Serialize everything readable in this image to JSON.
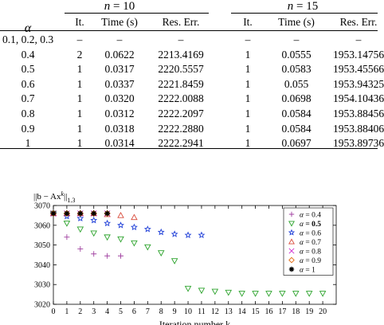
{
  "table": {
    "alpha_symbol": "α",
    "groups": [
      {
        "var": "n",
        "rest": " = 10"
      },
      {
        "var": "n",
        "rest": " = 15"
      }
    ],
    "subheaders": [
      "It.",
      "Time (s)",
      "Res. Err.",
      "It.",
      "Time (s)",
      "Res. Err."
    ],
    "rows": [
      {
        "alpha": "0.1, 0.2, 0.3",
        "cells": [
          "–",
          "–",
          "–",
          "–",
          "–",
          "–"
        ]
      },
      {
        "alpha": "0.4",
        "cells": [
          "2",
          "0.0622",
          "2213.4169",
          "1",
          "0.0555",
          "1953.14756"
        ]
      },
      {
        "alpha": "0.5",
        "cells": [
          "1",
          "0.0317",
          "2220.5557",
          "1",
          "0.0583",
          "1953.45566"
        ]
      },
      {
        "alpha": "0.6",
        "cells": [
          "1",
          "0.0337",
          "2221.8459",
          "1",
          "0.055",
          "1953.94325"
        ]
      },
      {
        "alpha": "0.7",
        "cells": [
          "1",
          "0.0320",
          "2222.0088",
          "1",
          "0.0698",
          "1954.10436"
        ]
      },
      {
        "alpha": "0.8",
        "cells": [
          "1",
          "0.0312",
          "2222.2097",
          "1",
          "0.0584",
          "1953.88456"
        ]
      },
      {
        "alpha": "0.9",
        "cells": [
          "1",
          "0.0318",
          "2222.2880",
          "1",
          "0.0584",
          "1953.88406"
        ]
      },
      {
        "alpha": "1",
        "cells": [
          "1",
          "0.0314",
          "2222.2941",
          "1",
          "0.0697",
          "1953.89736"
        ]
      }
    ]
  },
  "chart_data": {
    "type": "scatter",
    "ylabel": "||b − Ax^k||_1.3",
    "xlabel": "Iteration number k",
    "xlim": [
      0,
      21
    ],
    "ylim": [
      3020,
      3070
    ],
    "x_ticks": [
      "0",
      "1",
      "2",
      "3",
      "4",
      "5",
      "6",
      "7",
      "8",
      "9",
      "10",
      "11",
      "12",
      "13",
      "14",
      "15",
      "16",
      "17",
      "18",
      "19",
      "20"
    ],
    "y_ticks": [
      "3020",
      "3030",
      "3040",
      "3050",
      "3060",
      "3070"
    ],
    "legend_position": "top-right",
    "series": [
      {
        "name": "α = 0.4",
        "label": "α = 0.4",
        "marker": "plus",
        "color": "#a040a0",
        "x": [
          0,
          1,
          2,
          3,
          4,
          5
        ],
        "y": [
          3066,
          3054,
          3048,
          3045.5,
          3044.5,
          3044.5
        ]
      },
      {
        "name": "α = 0.5",
        "label": "α = 0.5",
        "marker": "triangle-down",
        "color": "#2aa22a",
        "x": [
          0,
          1,
          2,
          3,
          4,
          5,
          6,
          7,
          8,
          9,
          10,
          11,
          12,
          13,
          14,
          15,
          16,
          17,
          18,
          19,
          20
        ],
        "y": [
          3066,
          3061,
          3058,
          3056,
          3054,
          3053,
          3051,
          3049,
          3046,
          3042,
          3028,
          3027,
          3026.5,
          3026,
          3025.5,
          3025.5,
          3025.5,
          3025.5,
          3025.5,
          3025.5,
          3025.5
        ]
      },
      {
        "name": "α = 0.6",
        "label": "α = 0.6",
        "marker": "star",
        "color": "#1f3fd8",
        "x": [
          0,
          1,
          2,
          3,
          4,
          5,
          6,
          7,
          8,
          9,
          10,
          11
        ],
        "y": [
          3066,
          3064.5,
          3063.5,
          3062.5,
          3061,
          3060,
          3059,
          3058,
          3056.5,
          3055.5,
          3055,
          3055
        ]
      },
      {
        "name": "α = 0.7",
        "label": "α = 0.7",
        "marker": "triangle-up",
        "color": "#d84a3a",
        "x": [
          0,
          1,
          2,
          3,
          4,
          5,
          6
        ],
        "y": [
          3066,
          3066,
          3066,
          3066,
          3065.5,
          3065,
          3064
        ]
      },
      {
        "name": "α = 0.8",
        "label": "α = 0.8",
        "marker": "x",
        "color": "#d030d0",
        "x": [
          0,
          1,
          2,
          3,
          4
        ],
        "y": [
          3066,
          3066,
          3066,
          3066,
          3066
        ]
      },
      {
        "name": "α = 0.9",
        "label": "α = 0.9",
        "marker": "diamond",
        "color": "#e26a10",
        "x": [
          0,
          1,
          2,
          3,
          4
        ],
        "y": [
          3066,
          3066,
          3066,
          3066,
          3066
        ]
      },
      {
        "name": "α = 1",
        "label": "α = 1",
        "marker": "asterisk",
        "color": "#000000",
        "x": [
          0,
          1,
          2,
          3,
          4
        ],
        "y": [
          3066,
          3066,
          3066,
          3066,
          3066
        ]
      }
    ]
  }
}
